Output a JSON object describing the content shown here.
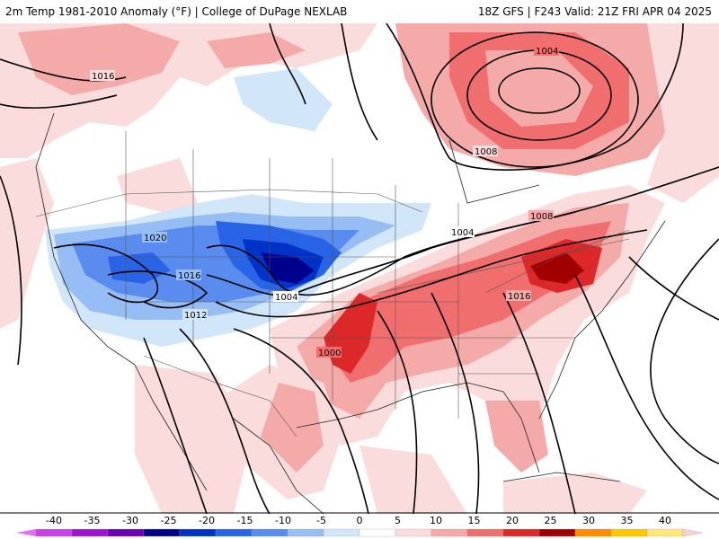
{
  "header": {
    "title_left": "2m Temp 1981-2010 Anomaly (°F) | College of DuPage NEXLAB",
    "title_right": "18Z GFS | F243 Valid: 21Z FRI APR 04 2025"
  },
  "map": {
    "isobar_labels": [
      "1016",
      "1004",
      "1008",
      "1020",
      "1016",
      "1012",
      "1004",
      "1008",
      "1004",
      "1016",
      "1000"
    ]
  },
  "colorbar": {
    "ticks": [
      "-40",
      "-35",
      "-30",
      "-25",
      "-20",
      "-15",
      "-10",
      "-5",
      "0",
      "5",
      "10",
      "15",
      "20",
      "25",
      "30",
      "35",
      "40"
    ],
    "colors": [
      "#c840e8",
      "#9a14d2",
      "#6a00b4",
      "#00008c",
      "#0032c8",
      "#2a64e6",
      "#5a8cf0",
      "#96bef5",
      "#d2e6fa",
      "#ffffff",
      "#fadcdc",
      "#f5aaaa",
      "#f06e6e",
      "#dc2828",
      "#a00000",
      "#ff8c00",
      "#ffc800",
      "#ffe678"
    ]
  }
}
